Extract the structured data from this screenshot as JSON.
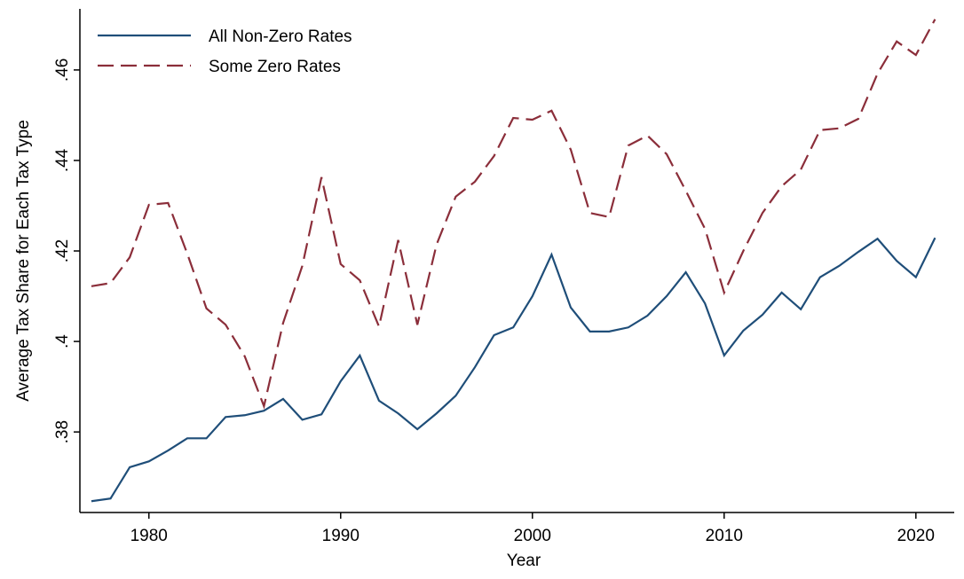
{
  "chart_data": {
    "type": "line",
    "xlabel": "Year",
    "ylabel": "Average Tax Share for Each Tax Type",
    "x": [
      1977,
      1978,
      1979,
      1980,
      1981,
      1982,
      1983,
      1984,
      1985,
      1986,
      1987,
      1988,
      1989,
      1990,
      1991,
      1992,
      1993,
      1994,
      1995,
      1996,
      1997,
      1998,
      1999,
      2000,
      2001,
      2002,
      2003,
      2004,
      2005,
      2006,
      2007,
      2008,
      2009,
      2010,
      2011,
      2012,
      2013,
      2014,
      2015,
      2016,
      2017,
      2018,
      2019,
      2020,
      2021
    ],
    "series": [
      {
        "name": "All Non-Zero Rates",
        "color": "#1f4e79",
        "dash": "solid",
        "values": [
          0.3647,
          0.3653,
          0.3722,
          0.3735,
          0.3759,
          0.3786,
          0.3786,
          0.3833,
          0.3837,
          0.3847,
          0.3873,
          0.3827,
          0.3839,
          0.3912,
          0.3969,
          0.3869,
          0.3841,
          0.3806,
          0.3841,
          0.388,
          0.3943,
          0.4014,
          0.4031,
          0.41,
          0.4192,
          0.4075,
          0.4022,
          0.4022,
          0.4031,
          0.4057,
          0.41,
          0.4153,
          0.4084,
          0.3969,
          0.4024,
          0.4059,
          0.4108,
          0.4071,
          0.4142,
          0.4167,
          0.4198,
          0.4227,
          0.4178,
          0.4142,
          0.4229
        ]
      },
      {
        "name": "Some Zero Rates",
        "color": "#8b2e3a",
        "dash": "dashed",
        "values": [
          0.4122,
          0.4129,
          0.4186,
          0.4302,
          0.4306,
          0.4194,
          0.4073,
          0.4037,
          0.3967,
          0.3857,
          0.4041,
          0.4167,
          0.4363,
          0.4171,
          0.4135,
          0.4033,
          0.4224,
          0.4037,
          0.4214,
          0.432,
          0.4353,
          0.441,
          0.4494,
          0.449,
          0.451,
          0.4424,
          0.4284,
          0.4275,
          0.4433,
          0.4455,
          0.4414,
          0.4333,
          0.4249,
          0.4108,
          0.42,
          0.4284,
          0.4343,
          0.438,
          0.4467,
          0.4471,
          0.4492,
          0.4592,
          0.4663,
          0.4633,
          0.4712
        ]
      }
    ],
    "xlim": [
      1976.4,
      2022.0
    ],
    "ylim": [
      0.3622,
      0.4735
    ],
    "xticks": [
      1980,
      1990,
      2000,
      2010,
      2020
    ],
    "yticks": [
      {
        "value": 0.38,
        "label": ".38"
      },
      {
        "value": 0.4,
        "label": ".4"
      },
      {
        "value": 0.42,
        "label": ".42"
      },
      {
        "value": 0.44,
        "label": ".44"
      },
      {
        "value": 0.46,
        "label": ".46"
      }
    ],
    "grid": false,
    "legend": "top-left"
  }
}
